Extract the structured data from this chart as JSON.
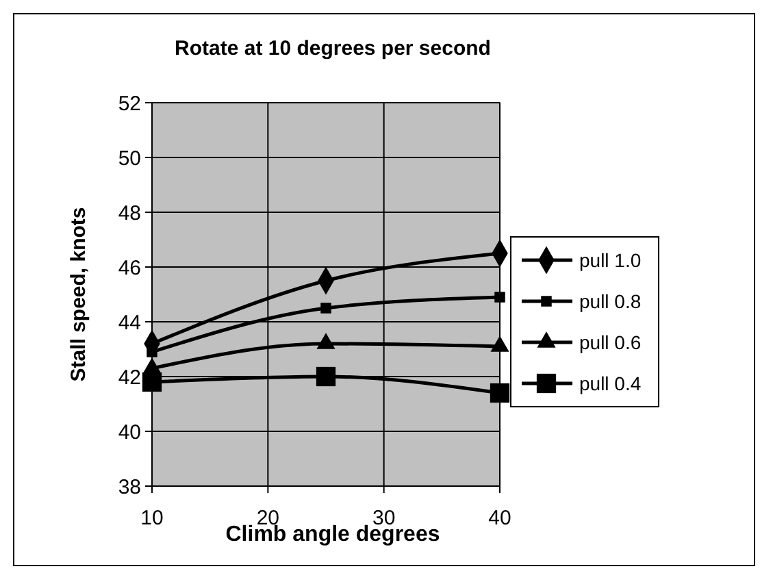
{
  "chart_data": {
    "type": "line",
    "title": "Rotate at 10 degrees per second",
    "xlabel": "Climb angle degrees",
    "ylabel": "Stall speed, knots",
    "x": [
      10,
      25,
      40
    ],
    "xlim": [
      10,
      40
    ],
    "xticks": [
      10,
      20,
      30,
      40
    ],
    "ylim": [
      38,
      52
    ],
    "yticks": [
      38,
      40,
      42,
      44,
      46,
      48,
      50,
      52
    ],
    "grid": true,
    "legend": "right",
    "line_style": "solid",
    "series": [
      {
        "name": "pull 1.0",
        "color": "#000000",
        "marker": "diamond",
        "values": [
          43.2,
          45.5,
          46.5
        ]
      },
      {
        "name": "pull 0.8",
        "color": "#000000",
        "marker": "square",
        "values": [
          42.9,
          44.5,
          44.9
        ]
      },
      {
        "name": "pull 0.6",
        "color": "#000000",
        "marker": "triangle",
        "values": [
          42.3,
          43.2,
          43.1
        ]
      },
      {
        "name": "pull 0.4",
        "color": "#000000",
        "marker": "square",
        "values": [
          41.8,
          42.0,
          41.4
        ]
      }
    ]
  }
}
